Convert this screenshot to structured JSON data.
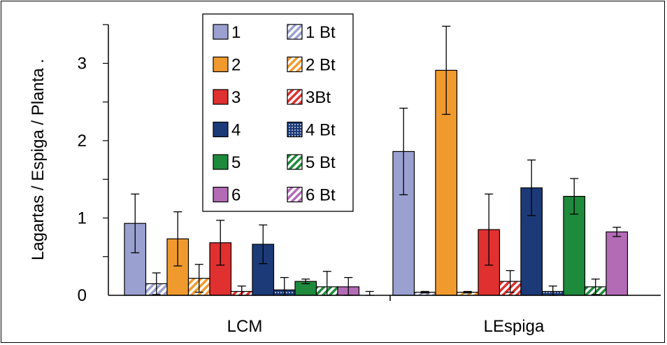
{
  "chart_data": {
    "type": "bar",
    "title": "",
    "ylabel": "Lagartas / Espiga / Planta .",
    "xlabel": "",
    "ylim": [
      0,
      3.5
    ],
    "yticks": [
      0,
      1,
      2,
      3
    ],
    "grid": false,
    "legend_position": "top-center",
    "categories": [
      "LCM",
      "LEspiga"
    ],
    "series": [
      {
        "name": "1",
        "color": "#9aa1d0",
        "pattern": "solid",
        "values": [
          0.93,
          1.86
        ],
        "errors": [
          0.38,
          0.56
        ]
      },
      {
        "name": "1 Bt",
        "color": "#9aa1d0",
        "pattern": "hatch",
        "values": [
          0.15,
          0.04
        ],
        "errors": [
          0.14,
          0.01
        ]
      },
      {
        "name": "2",
        "color": "#f09a2e",
        "pattern": "solid",
        "values": [
          0.73,
          2.91
        ],
        "errors": [
          0.35,
          0.57
        ]
      },
      {
        "name": "2 Bt",
        "color": "#f09a2e",
        "pattern": "hatch",
        "values": [
          0.22,
          0.04
        ],
        "errors": [
          0.18,
          0.01
        ]
      },
      {
        "name": "3",
        "color": "#e03030",
        "pattern": "solid",
        "values": [
          0.68,
          0.85
        ],
        "errors": [
          0.29,
          0.46
        ]
      },
      {
        "name": "3Bt",
        "color": "#e03030",
        "pattern": "hatch",
        "values": [
          0.05,
          0.18
        ],
        "errors": [
          0.07,
          0.14
        ]
      },
      {
        "name": "4",
        "color": "#1c3a78",
        "pattern": "solid",
        "values": [
          0.66,
          1.39
        ],
        "errors": [
          0.25,
          0.36
        ]
      },
      {
        "name": "4 Bt",
        "color": "#1c3a78",
        "pattern": "dotted",
        "values": [
          0.07,
          0.05
        ],
        "errors": [
          0.16,
          0.07
        ]
      },
      {
        "name": "5",
        "color": "#1e8a3c",
        "pattern": "solid",
        "values": [
          0.18,
          1.28
        ],
        "errors": [
          0.03,
          0.23
        ]
      },
      {
        "name": "5 Bt",
        "color": "#1e8a3c",
        "pattern": "hatch",
        "values": [
          0.11,
          0.11
        ],
        "errors": [
          0.2,
          0.1
        ]
      },
      {
        "name": "6",
        "color": "#b36bb5",
        "pattern": "solid",
        "values": [
          0.11,
          0.82
        ],
        "errors": [
          0.12,
          0.06
        ]
      },
      {
        "name": "6 Bt",
        "color": "#b36bb5",
        "pattern": "hatch",
        "values": [
          0.0,
          0.0
        ],
        "errors": [
          0.05,
          0.0
        ]
      }
    ]
  }
}
